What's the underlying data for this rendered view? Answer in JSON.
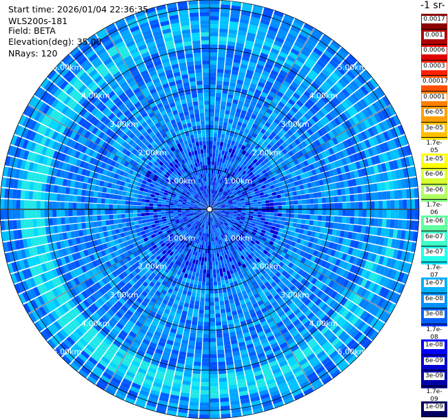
{
  "info": {
    "start_time": "Start time: 2026/01/04 22:36:35",
    "instrument": "WLS200s-181",
    "field": "Field: BETA",
    "elevation": "Elevation(deg): 35.00",
    "nrays": "NRays: 120"
  },
  "colorbar": {
    "title": "-1 sr-",
    "labels": [
      "0.0017",
      "0.001",
      "0.0006",
      "0.0003",
      "0.00017",
      "0.0001",
      "6e-05",
      "3e-05",
      "1.7e-05",
      "1e-05",
      "6e-06",
      "3e-06",
      "1.7e-06",
      "1e-06",
      "6e-07",
      "3e-07",
      "1.7e-07",
      "1e-07",
      "6e-08",
      "3e-08",
      "1.7e-08",
      "1e-08",
      "6e-09",
      "3e-09",
      "1.7e-09",
      "1e-09"
    ],
    "colors": [
      "#8b0000",
      "#b00000",
      "#e00000",
      "#ff2000",
      "#ff5000",
      "#ff8000",
      "#ffa000",
      "#ffc000",
      "#ffe000",
      "#ffff00",
      "#d8ff30",
      "#b0ff60",
      "#80ff80",
      "#60ffa0",
      "#40ffc8",
      "#20ffe8",
      "#00e0ff",
      "#00b0ff",
      "#0090ff",
      "#0060ff",
      "#0030ff",
      "#0000ff",
      "#0000d0",
      "#0000a8",
      "#000080",
      "#000060"
    ]
  },
  "chart_data": {
    "type": "heatmap",
    "projection": "polar-ppi",
    "nrays": 120,
    "range_rings_km": [
      1,
      2,
      3,
      4,
      5
    ],
    "ring_labels": {
      "r1": "1.00km",
      "r2": "2.00km",
      "r3": "3.00km",
      "r4": "4.00km",
      "r5": "5.00km"
    },
    "max_range_km": 5.2,
    "dominant_value_class": "1e-07",
    "note_palette": "jet"
  }
}
